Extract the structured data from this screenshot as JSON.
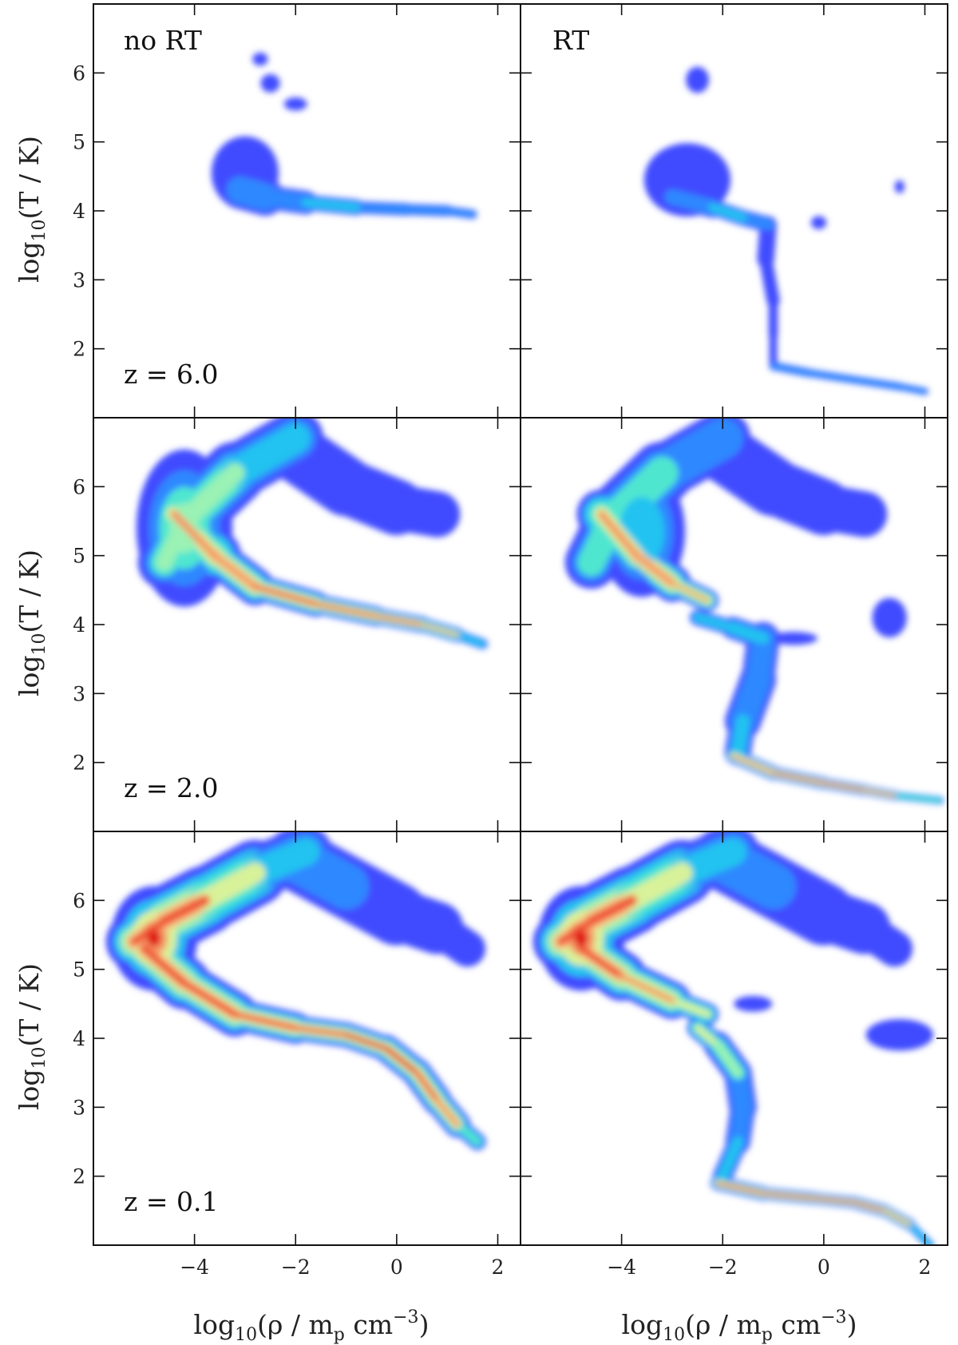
{
  "chart_data": {
    "type": "heatmap",
    "figure": "phase-diagram grid: temperature vs density, columns = no RT / RT, rows = redshift",
    "layout": {
      "rows": 3,
      "cols": 2
    },
    "x": {
      "label_main": "log",
      "label_sub": "10",
      "label_rest": "(ρ / m",
      "label_sub2": "p",
      "label_unit": " cm",
      "label_sup": "−3",
      "label_close": ")",
      "lim": [
        -6.0,
        2.45
      ],
      "ticks": [
        -4,
        -2,
        0,
        2
      ],
      "tick_labels": [
        "−4",
        "−2",
        "0",
        "2"
      ]
    },
    "y": {
      "label_main": "log",
      "label_sub": "10",
      "label_rest": "(T / K)",
      "lim": [
        1.0,
        7.0
      ],
      "ticks": [
        2,
        3,
        4,
        5,
        6
      ],
      "tick_labels": [
        "2",
        "3",
        "4",
        "5",
        "6"
      ]
    },
    "column_labels": [
      "no RT",
      "RT"
    ],
    "row_labels": [
      "z = 6.0",
      "z = 2.0",
      "z = 0.1"
    ],
    "colormap": [
      "#3f4cff",
      "#2f88ff",
      "#22c3f0",
      "#4fe6d0",
      "#9af2b4",
      "#d8f29a",
      "#f5d08a",
      "#f59a66",
      "#f05a3a",
      "#e01a12"
    ],
    "panels": [
      {
        "row": 0,
        "col": 0,
        "tracks": [
          {
            "points": [
              [
                -3.1,
                4.3
              ],
              [
                -2.6,
                4.2
              ],
              [
                -1.8,
                4.12
              ],
              [
                -0.8,
                4.05
              ],
              [
                0.2,
                4.02
              ],
              [
                1.0,
                4.0
              ],
              [
                1.5,
                3.95
              ]
            ],
            "width": [
              0.35,
              0.22,
              0.14,
              0.1,
              0.09,
              0.08,
              0.06
            ],
            "intensity": [
              0.35,
              0.4,
              0.45,
              0.45,
              0.4,
              0.35,
              0.3
            ]
          }
        ],
        "blobs": [
          {
            "x": -3.0,
            "y": 4.55,
            "rx": 0.35,
            "ry": 0.28,
            "i": 0.15
          },
          {
            "x": -2.7,
            "y": 6.2,
            "rx": 0.08,
            "ry": 0.05,
            "i": 0.05
          },
          {
            "x": -2.0,
            "y": 5.55,
            "rx": 0.12,
            "ry": 0.05,
            "i": 0.05
          },
          {
            "x": -2.5,
            "y": 5.85,
            "rx": 0.1,
            "ry": 0.07,
            "i": 0.05
          }
        ]
      },
      {
        "row": 0,
        "col": 1,
        "tracks": [
          {
            "points": [
              [
                -3.0,
                4.2
              ],
              [
                -2.2,
                4.05
              ],
              [
                -1.6,
                3.9
              ],
              [
                -1.1,
                3.8
              ]
            ],
            "width": [
              0.2,
              0.12,
              0.12,
              0.12
            ],
            "intensity": [
              0.35,
              0.45,
              0.45,
              0.35
            ]
          },
          {
            "points": [
              [
                -1.1,
                3.8
              ],
              [
                -1.15,
                3.3
              ],
              [
                -1.0,
                2.7
              ],
              [
                -1.0,
                2.2
              ],
              [
                -1.0,
                1.8
              ]
            ],
            "width": [
              0.14,
              0.12,
              0.08,
              0.06,
              0.06
            ],
            "intensity": [
              0.15,
              0.12,
              0.1,
              0.1,
              0.1
            ]
          },
          {
            "points": [
              [
                -1.0,
                1.75
              ],
              [
                -0.3,
                1.65
              ],
              [
                0.6,
                1.55
              ],
              [
                1.5,
                1.45
              ],
              [
                2.0,
                1.38
              ]
            ],
            "width": [
              0.07,
              0.06,
              0.06,
              0.06,
              0.05
            ],
            "intensity": [
              0.35,
              0.4,
              0.4,
              0.35,
              0.3
            ]
          }
        ],
        "blobs": [
          {
            "x": -2.7,
            "y": 4.45,
            "rx": 0.45,
            "ry": 0.28,
            "i": 0.15
          },
          {
            "x": -0.1,
            "y": 3.83,
            "rx": 0.08,
            "ry": 0.05,
            "i": 0.25
          },
          {
            "x": 1.5,
            "y": 4.35,
            "rx": 0.05,
            "ry": 0.05,
            "i": 0.05
          },
          {
            "x": -2.5,
            "y": 5.9,
            "rx": 0.12,
            "ry": 0.1,
            "i": 0.05
          }
        ]
      },
      {
        "row": 1,
        "col": 0,
        "tracks": [
          {
            "points": [
              [
                -4.6,
                4.9
              ],
              [
                -4.2,
                5.5
              ],
              [
                -3.2,
                6.2
              ],
              [
                -2.0,
                6.7
              ]
            ],
            "width": [
              0.35,
              0.45,
              0.5,
              0.35
            ],
            "intensity": [
              0.55,
              0.7,
              0.55,
              0.35
            ]
          },
          {
            "points": [
              [
                -4.4,
                5.6
              ],
              [
                -3.6,
                5.0
              ],
              [
                -2.8,
                4.55
              ],
              [
                -1.6,
                4.3
              ],
              [
                -0.4,
                4.12
              ],
              [
                0.5,
                4.0
              ],
              [
                1.2,
                3.85
              ],
              [
                1.7,
                3.72
              ]
            ],
            "width": [
              0.45,
              0.35,
              0.22,
              0.17,
              0.13,
              0.12,
              0.1,
              0.06
            ],
            "intensity": [
              0.75,
              0.8,
              0.85,
              0.92,
              0.95,
              0.9,
              0.6,
              0.3
            ]
          },
          {
            "points": [
              [
                -2.0,
                6.5
              ],
              [
                -1.0,
                6.0
              ],
              [
                0.0,
                5.7
              ],
              [
                0.8,
                5.6
              ]
            ],
            "width": [
              0.45,
              0.45,
              0.4,
              0.3
            ],
            "intensity": [
              0.3,
              0.2,
              0.15,
              0.08
            ]
          }
        ],
        "blobs": [
          {
            "x": -4.2,
            "y": 5.4,
            "rx": 0.5,
            "ry": 0.6,
            "i": 0.6
          }
        ]
      },
      {
        "row": 1,
        "col": 1,
        "tracks": [
          {
            "points": [
              [
                -4.6,
                4.9
              ],
              [
                -4.2,
                5.5
              ],
              [
                -3.2,
                6.2
              ],
              [
                -2.0,
                6.7
              ]
            ],
            "width": [
              0.35,
              0.45,
              0.5,
              0.35
            ],
            "intensity": [
              0.5,
              0.65,
              0.5,
              0.35
            ]
          },
          {
            "points": [
              [
                -4.4,
                5.6
              ],
              [
                -3.7,
                5.0
              ],
              [
                -3.0,
                4.6
              ],
              [
                -2.3,
                4.35
              ]
            ],
            "width": [
              0.4,
              0.35,
              0.22,
              0.12
            ],
            "intensity": [
              0.7,
              0.8,
              0.85,
              0.75
            ]
          },
          {
            "points": [
              [
                -2.5,
                4.1
              ],
              [
                -1.8,
                3.95
              ],
              [
                -1.2,
                3.8
              ],
              [
                -1.3,
                3.2
              ],
              [
                -1.6,
                2.6
              ],
              [
                -1.7,
                2.15
              ]
            ],
            "width": [
              0.1,
              0.14,
              0.2,
              0.3,
              0.25,
              0.15
            ],
            "intensity": [
              0.35,
              0.55,
              0.35,
              0.3,
              0.35,
              0.55
            ]
          },
          {
            "points": [
              [
                -1.8,
                2.1
              ],
              [
                -1.0,
                1.85
              ],
              [
                0.0,
                1.7
              ],
              [
                0.8,
                1.6
              ],
              [
                1.4,
                1.52
              ],
              [
                2.3,
                1.45
              ]
            ],
            "width": [
              0.12,
              0.1,
              0.09,
              0.08,
              0.07,
              0.05
            ],
            "intensity": [
              0.8,
              0.85,
              0.9,
              0.9,
              0.75,
              0.4
            ]
          },
          {
            "points": [
              [
                -2.0,
                6.5
              ],
              [
                -1.0,
                6.0
              ],
              [
                0.0,
                5.7
              ],
              [
                0.8,
                5.6
              ]
            ],
            "width": [
              0.45,
              0.45,
              0.4,
              0.3
            ],
            "intensity": [
              0.3,
              0.2,
              0.15,
              0.08
            ]
          }
        ],
        "blobs": [
          {
            "x": -3.6,
            "y": 5.35,
            "rx": 0.45,
            "ry": 0.5,
            "i": 0.55
          },
          {
            "x": 1.3,
            "y": 4.1,
            "rx": 0.18,
            "ry": 0.15,
            "i": 0.15
          },
          {
            "x": -0.6,
            "y": 3.8,
            "rx": 0.25,
            "ry": 0.05,
            "i": 0.25
          }
        ]
      },
      {
        "row": 2,
        "col": 0,
        "tracks": [
          {
            "points": [
              [
                -5.2,
                5.4
              ],
              [
                -4.6,
                5.7
              ],
              [
                -3.8,
                6.0
              ],
              [
                -2.8,
                6.4
              ],
              [
                -1.8,
                6.7
              ]
            ],
            "width": [
              0.35,
              0.5,
              0.55,
              0.45,
              0.35
            ],
            "intensity": [
              0.9,
              0.95,
              0.85,
              0.6,
              0.45
            ]
          },
          {
            "points": [
              [
                -5.0,
                5.3
              ],
              [
                -4.2,
                4.8
              ],
              [
                -3.2,
                4.35
              ],
              [
                -2.0,
                4.15
              ],
              [
                -1.0,
                4.05
              ],
              [
                -0.2,
                3.85
              ],
              [
                0.4,
                3.5
              ],
              [
                0.8,
                3.1
              ],
              [
                1.2,
                2.75
              ],
              [
                1.6,
                2.5
              ]
            ],
            "width": [
              0.4,
              0.4,
              0.28,
              0.2,
              0.18,
              0.2,
              0.22,
              0.22,
              0.18,
              0.08
            ],
            "intensity": [
              0.9,
              0.85,
              0.85,
              0.9,
              0.95,
              0.95,
              0.95,
              0.9,
              0.75,
              0.4
            ]
          },
          {
            "points": [
              [
                -2.0,
                6.6
              ],
              [
                -1.0,
                6.2
              ],
              [
                0.0,
                5.8
              ],
              [
                0.8,
                5.6
              ],
              [
                1.4,
                5.3
              ]
            ],
            "width": [
              0.45,
              0.5,
              0.45,
              0.35,
              0.2
            ],
            "intensity": [
              0.5,
              0.3,
              0.2,
              0.15,
              0.08
            ]
          }
        ],
        "blobs": [
          {
            "x": -4.8,
            "y": 5.45,
            "rx": 0.45,
            "ry": 0.4,
            "i": 1.0
          }
        ]
      },
      {
        "row": 2,
        "col": 1,
        "tracks": [
          {
            "points": [
              [
                -5.2,
                5.4
              ],
              [
                -4.6,
                5.7
              ],
              [
                -3.8,
                6.0
              ],
              [
                -2.8,
                6.4
              ],
              [
                -1.8,
                6.7
              ]
            ],
            "width": [
              0.35,
              0.5,
              0.55,
              0.45,
              0.35
            ],
            "intensity": [
              0.9,
              0.95,
              0.85,
              0.6,
              0.45
            ]
          },
          {
            "points": [
              [
                -4.8,
                5.3
              ],
              [
                -4.0,
                4.9
              ],
              [
                -3.0,
                4.55
              ],
              [
                -2.3,
                4.35
              ]
            ],
            "width": [
              0.4,
              0.35,
              0.22,
              0.12
            ],
            "intensity": [
              0.85,
              0.85,
              0.75,
              0.6
            ]
          },
          {
            "points": [
              [
                -2.5,
                4.15
              ],
              [
                -2.1,
                3.9
              ],
              [
                -1.7,
                3.5
              ],
              [
                -1.6,
                3.0
              ],
              [
                -1.7,
                2.5
              ],
              [
                -2.0,
                2.0
              ]
            ],
            "width": [
              0.12,
              0.2,
              0.22,
              0.2,
              0.18,
              0.12
            ],
            "intensity": [
              0.7,
              0.75,
              0.5,
              0.35,
              0.35,
              0.55
            ]
          },
          {
            "points": [
              [
                -2.1,
                1.9
              ],
              [
                -1.2,
                1.75
              ],
              [
                -0.2,
                1.68
              ],
              [
                0.6,
                1.62
              ],
              [
                1.2,
                1.5
              ],
              [
                1.7,
                1.3
              ],
              [
                2.1,
                1.0
              ]
            ],
            "width": [
              0.12,
              0.1,
              0.09,
              0.09,
              0.1,
              0.08,
              0.05
            ],
            "intensity": [
              0.95,
              0.9,
              0.9,
              0.95,
              0.9,
              0.7,
              0.35
            ]
          },
          {
            "points": [
              [
                -2.0,
                6.6
              ],
              [
                -1.0,
                6.2
              ],
              [
                0.0,
                5.8
              ],
              [
                0.8,
                5.6
              ],
              [
                1.4,
                5.3
              ]
            ],
            "width": [
              0.45,
              0.5,
              0.45,
              0.35,
              0.2
            ],
            "intensity": [
              0.5,
              0.3,
              0.2,
              0.15,
              0.08
            ]
          }
        ],
        "blobs": [
          {
            "x": -4.8,
            "y": 5.45,
            "rx": 0.45,
            "ry": 0.4,
            "i": 1.0
          },
          {
            "x": 1.5,
            "y": 4.05,
            "rx": 0.35,
            "ry": 0.12,
            "i": 0.2
          },
          {
            "x": -1.4,
            "y": 4.5,
            "rx": 0.2,
            "ry": 0.06,
            "i": 0.1
          }
        ]
      }
    ]
  }
}
